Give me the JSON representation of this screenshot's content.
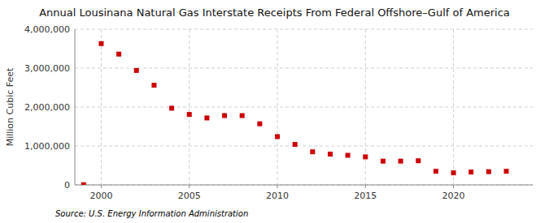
{
  "chart_data": {
    "type": "scatter",
    "title": "Annual Lousinana Natural Gas Interstate Receipts From Federal Offshore–Gulf of America",
    "ylabel": "Million Cubic Feet",
    "annotations": [
      "Source: U.S. Energy Information Administration"
    ],
    "x": [
      1999,
      2000,
      2001,
      2002,
      2003,
      2004,
      2005,
      2006,
      2007,
      2008,
      2009,
      2010,
      2011,
      2012,
      2013,
      2014,
      2015,
      2016,
      2017,
      2018,
      2019,
      2020,
      2021,
      2022,
      2023
    ],
    "values": [
      5000,
      3630000,
      3360000,
      2940000,
      2560000,
      1970000,
      1810000,
      1720000,
      1780000,
      1780000,
      1570000,
      1240000,
      1040000,
      850000,
      790000,
      760000,
      720000,
      610000,
      610000,
      620000,
      350000,
      310000,
      330000,
      340000,
      350000
    ],
    "color": "#cc0000",
    "marker": "square",
    "xlim": [
      1998.5,
      2024.5
    ],
    "xticks": [
      2000,
      2005,
      2010,
      2015,
      2020
    ],
    "ylim": [
      0,
      4000000
    ],
    "yticks": [
      0,
      {
        "value": 1000000,
        "label": "1,000,000"
      },
      {
        "value": 2000000,
        "label": "2,000,000"
      },
      {
        "value": 3000000,
        "label": "3,000,000"
      },
      {
        "value": 4000000,
        "label": "4,000,000"
      }
    ],
    "grid": true
  }
}
